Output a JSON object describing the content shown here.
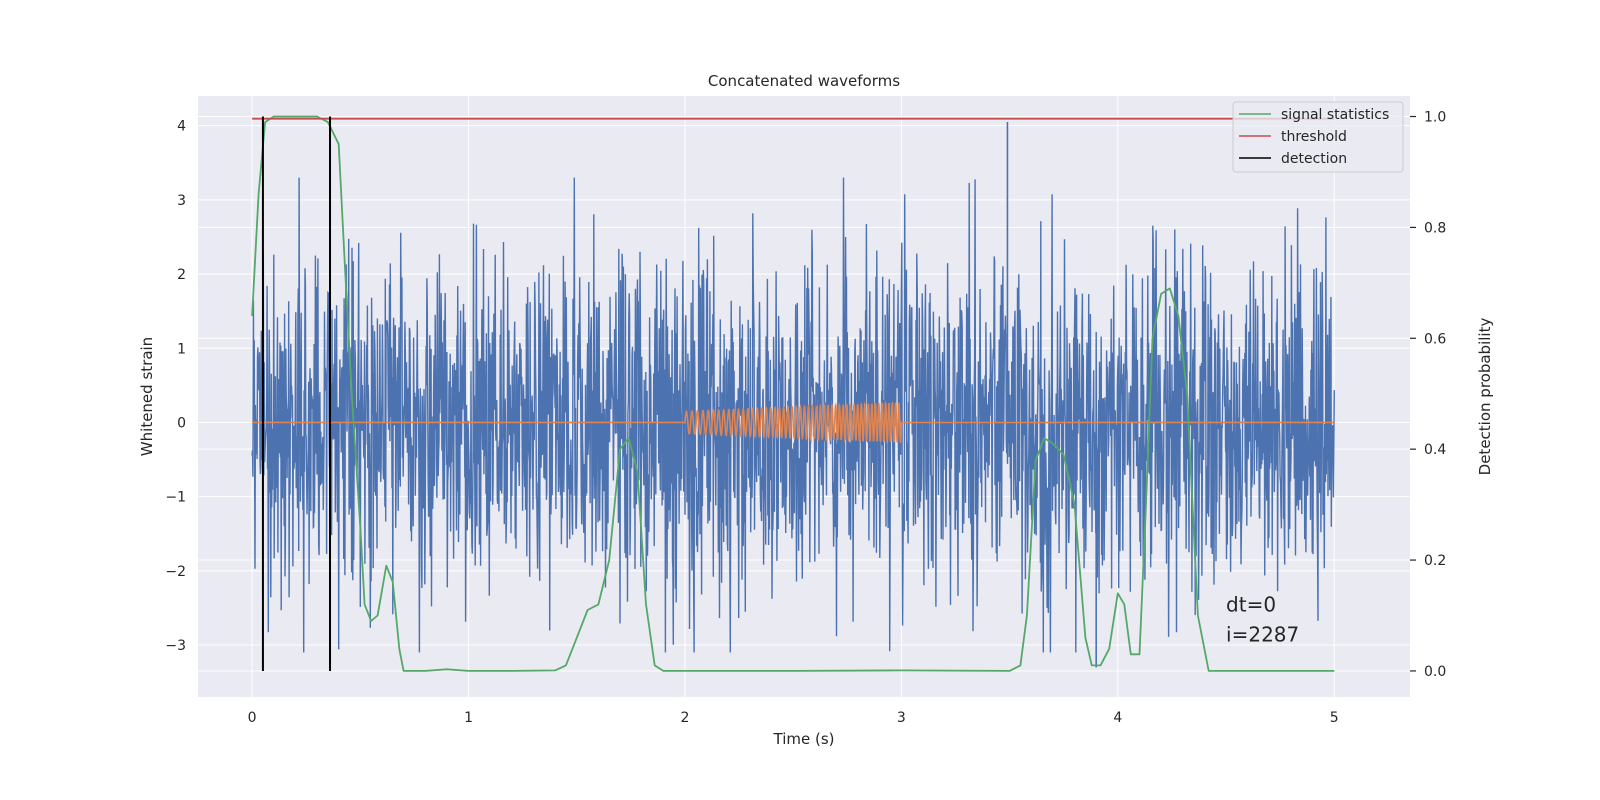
{
  "chart_data": {
    "type": "line",
    "title": "Concatenated waveforms",
    "xlabel": "Time (s)",
    "ylabel": "Whitened strain",
    "y2label": "Detection probability",
    "xlim": [
      -0.25,
      5.35
    ],
    "ylim": [
      -3.7,
      4.4
    ],
    "y2lim": [
      -0.047,
      1.037
    ],
    "xticks": [
      0,
      1,
      2,
      3,
      4,
      5
    ],
    "yticks": [
      -3,
      -2,
      -1,
      0,
      1,
      2,
      3,
      4
    ],
    "y2ticks": [
      0.0,
      0.2,
      0.4,
      0.6,
      0.8,
      1.0
    ],
    "xtick_labels": [
      "0",
      "1",
      "2",
      "3",
      "4",
      "5"
    ],
    "ytick_labels": [
      "−3",
      "−2",
      "−1",
      "0",
      "1",
      "2",
      "3",
      "4"
    ],
    "y2tick_labels": [
      "0.0",
      "0.2",
      "0.4",
      "0.6",
      "0.8",
      "1.0"
    ],
    "grid": true,
    "legend_position": "top-right",
    "series": [
      {
        "name": "whitened strain",
        "axis": "left",
        "color": "#4c72b0",
        "kind": "noise",
        "x_range": [
          0,
          5
        ],
        "typical_amplitude": [
          -2.3,
          2.3
        ],
        "peak_max": 4.05,
        "peak_min": -3.3
      },
      {
        "name": "injected waveform",
        "axis": "left",
        "color": "#dd8452",
        "kind": "chirp",
        "baseline": 0,
        "chirp_x_range": [
          2.0,
          3.0
        ],
        "chirp_amplitude": [
          0.15,
          0.27
        ]
      },
      {
        "name": "signal statistics",
        "axis": "right",
        "color": "#55a868",
        "x": [
          0.0,
          0.03,
          0.06,
          0.1,
          0.2,
          0.3,
          0.35,
          0.4,
          0.43,
          0.46,
          0.5,
          0.52,
          0.55,
          0.58,
          0.62,
          0.65,
          0.68,
          0.7,
          0.8,
          0.9,
          1.0,
          1.2,
          1.4,
          1.45,
          1.5,
          1.55,
          1.6,
          1.65,
          1.7,
          1.74,
          1.78,
          1.82,
          1.86,
          1.9,
          2.0,
          2.5,
          3.0,
          3.5,
          3.55,
          3.58,
          3.62,
          3.66,
          3.7,
          3.75,
          3.8,
          3.85,
          3.88,
          3.92,
          3.96,
          4.0,
          4.03,
          4.06,
          4.1,
          4.13,
          4.16,
          4.2,
          4.24,
          4.28,
          4.32,
          4.37,
          4.42,
          4.5,
          4.6,
          4.8,
          5.0
        ],
        "y": [
          0.64,
          0.86,
          0.99,
          1.0,
          1.0,
          1.0,
          0.99,
          0.95,
          0.72,
          0.5,
          0.26,
          0.12,
          0.09,
          0.1,
          0.19,
          0.16,
          0.04,
          0.0,
          0.0,
          0.003,
          0.0,
          0.0,
          0.001,
          0.01,
          0.06,
          0.11,
          0.12,
          0.2,
          0.4,
          0.42,
          0.36,
          0.12,
          0.01,
          0.0,
          0.0,
          0.0,
          0.001,
          0.0,
          0.01,
          0.1,
          0.38,
          0.42,
          0.41,
          0.39,
          0.3,
          0.06,
          0.01,
          0.01,
          0.04,
          0.14,
          0.12,
          0.03,
          0.03,
          0.3,
          0.6,
          0.68,
          0.69,
          0.64,
          0.5,
          0.1,
          0.0,
          0.0,
          0.0,
          0.0,
          0.0
        ]
      },
      {
        "name": "threshold",
        "axis": "right",
        "color": "#c44e52",
        "x": [
          0,
          5
        ],
        "y": [
          0.996,
          0.996
        ]
      },
      {
        "name": "detection",
        "axis": "right",
        "color": "#000000",
        "kind": "vlines",
        "x": [
          0.05,
          0.36
        ],
        "y_range": [
          0.0,
          1.0
        ]
      }
    ],
    "legend": [
      "signal statistics",
      "threshold",
      "detection"
    ],
    "annotations": [
      "dt=0",
      "i=2287"
    ]
  }
}
